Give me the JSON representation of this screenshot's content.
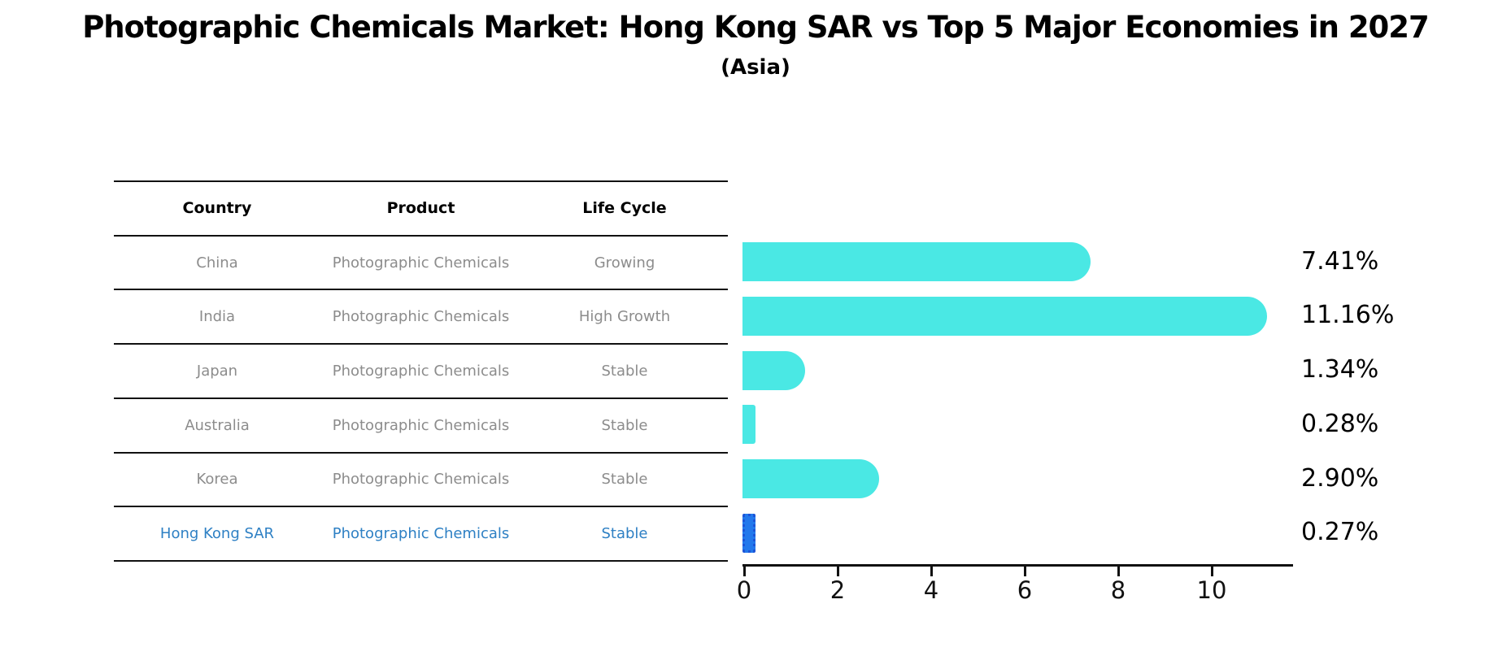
{
  "title": "Photographic Chemicals Market: Hong Kong SAR vs Top 5 Major Economies in 2027",
  "subtitle": "(Asia)",
  "table": {
    "headers": [
      "Country",
      "Product",
      "Life Cycle"
    ],
    "rows": [
      {
        "country": "China",
        "product": "Photographic Chemicals",
        "life_cycle": "Growing",
        "highlight": false
      },
      {
        "country": "India",
        "product": "Photographic Chemicals",
        "life_cycle": "High Growth",
        "highlight": false
      },
      {
        "country": "Japan",
        "product": "Photographic Chemicals",
        "life_cycle": "Stable",
        "highlight": false
      },
      {
        "country": "Australia",
        "product": "Photographic Chemicals",
        "life_cycle": "Stable",
        "highlight": false
      },
      {
        "country": "Korea",
        "product": "Photographic Chemicals",
        "life_cycle": "Stable",
        "highlight": false
      },
      {
        "country": "Hong Kong SAR",
        "product": "Photographic Chemicals",
        "life_cycle": "Stable",
        "highlight": true
      }
    ]
  },
  "chart_data": {
    "type": "bar",
    "orientation": "horizontal",
    "categories": [
      "China",
      "India",
      "Japan",
      "Australia",
      "Korea",
      "Hong Kong SAR"
    ],
    "values": [
      7.41,
      11.16,
      1.34,
      0.28,
      2.9,
      0.27
    ],
    "value_labels": [
      "7.41%",
      "11.16%",
      "1.34%",
      "0.28%",
      "2.90%",
      "0.27%"
    ],
    "highlight_index": 5,
    "x_ticks": [
      "0",
      "2",
      "4",
      "6",
      "8",
      "10"
    ],
    "x_tick_values": [
      0,
      2,
      4,
      6,
      8,
      10
    ],
    "xlim": [
      0,
      11.72
    ],
    "grid": false,
    "legend": null,
    "bar_color": "#4AE8E4",
    "highlight_bar_color": "#2278EC",
    "highlight_bar_edge_color": "#1C55D8"
  },
  "colors": {
    "text_muted": "#8c8c8c",
    "highlight_text": "#2e80c4",
    "axis": "#111111",
    "background": "#ffffff"
  }
}
